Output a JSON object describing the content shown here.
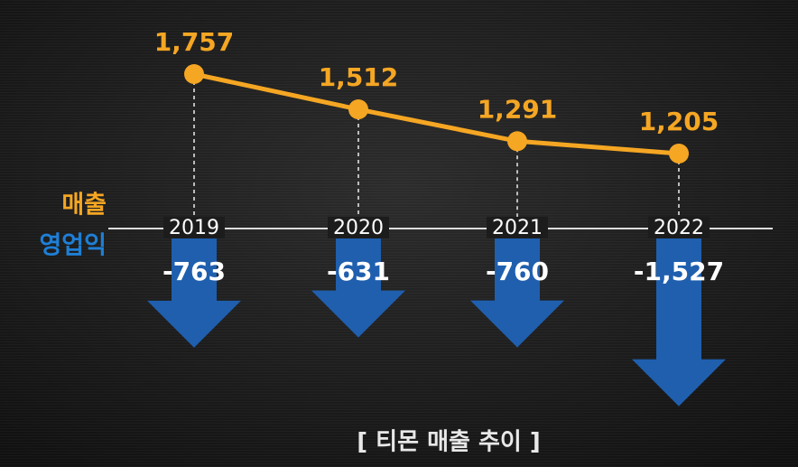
{
  "chart_data": {
    "type": "combo",
    "title": "[ 티몬 매출 추이 ]",
    "categories": [
      "2019",
      "2020",
      "2021",
      "2022"
    ],
    "series": [
      {
        "name": "매출",
        "type": "line",
        "color": "#f5a623",
        "values": [
          1757,
          1512,
          1291,
          1205
        ],
        "value_labels": [
          "1,757",
          "1,512",
          "1,291",
          "1,205"
        ]
      },
      {
        "name": "영업익",
        "type": "arrow",
        "color": "#1f5fae",
        "values": [
          -763,
          -631,
          -760,
          -1527
        ],
        "value_labels": [
          "-763",
          "-631",
          "-760",
          "-1,527"
        ]
      }
    ]
  }
}
